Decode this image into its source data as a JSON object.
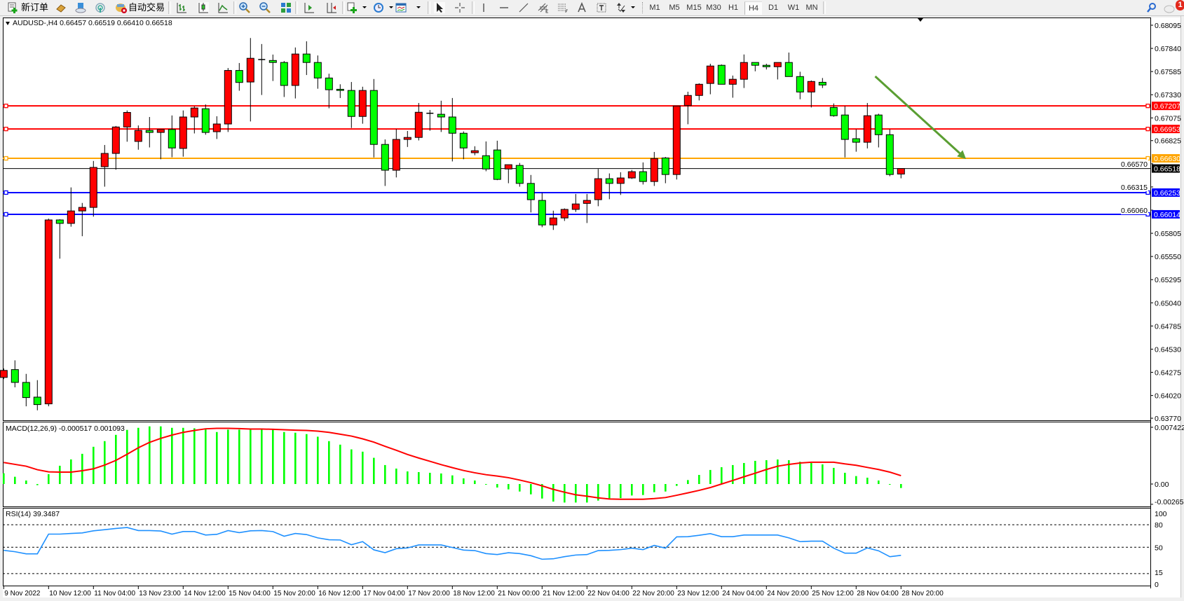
{
  "toolbar": {
    "new_order_label": "新订单",
    "auto_trading_label": "自动交易",
    "icons": [
      "new-order-icon",
      "gold-bars-icon",
      "data-window-icon",
      "signal-icon",
      "auto-trading-icon",
      "bar-chart-icon",
      "candlestick-icon",
      "line-chart-icon",
      "zoom-in-icon",
      "zoom-out-icon",
      "tile-windows-icon",
      "auto-scroll-icon",
      "chart-shift-icon",
      "indicators-icon",
      "periods-clock-icon",
      "templates-icon",
      "cursor-icon",
      "crosshair-icon",
      "vertical-line-icon",
      "horizontal-line-icon",
      "trend-line-icon",
      "equidistant-channel-icon",
      "fibonacci-icon",
      "text-icon",
      "text-label-icon",
      "arrows-icon",
      "search-icon",
      "notification-icon"
    ],
    "timeframes": [
      "M1",
      "M5",
      "M15",
      "M30",
      "H1",
      "H4",
      "D1",
      "W1",
      "MN"
    ],
    "active_timeframe": "H4",
    "notification_count": "1"
  },
  "main_panel": {
    "header": "AUDUSD-,H4  0.66457 0.66519 0.66410 0.66518"
  },
  "macd_panel": {
    "header": "MACD(12,26,9) -0.000517 0.001093"
  },
  "rsi_panel": {
    "header": "RSI(14) 39.3487"
  },
  "colors": {
    "bull_candle": "#ff0000",
    "bear_candle": "#00ff00",
    "macd_histogram": "#00ff00",
    "macd_signal": "#ff0000",
    "rsi_line": "#1e90ff",
    "arrow": "#5a9e32"
  },
  "chart_data": [
    {
      "type": "candlestick",
      "symbol": "AUDUSD-",
      "timeframe": "H4",
      "ylim": [
        0.63755,
        0.68172
      ],
      "y_tick_labels": [
        "0.68095",
        "0.67840",
        "0.67585",
        "0.67330",
        "0.67075",
        "0.66825",
        "0.66570",
        "0.66315",
        "0.66060",
        "0.65805",
        "0.65550",
        "0.65295",
        "0.65040",
        "0.64785",
        "0.64530",
        "0.64275",
        "0.64020",
        "0.63770"
      ],
      "x_tick_labels": [
        {
          "bar": 0,
          "label": "9 Nov 2022"
        },
        {
          "bar": 4,
          "label": "10 Nov 12:00"
        },
        {
          "bar": 8,
          "label": "11 Nov 04:00"
        },
        {
          "bar": 12,
          "label": "13 Nov 23:00"
        },
        {
          "bar": 16,
          "label": "14 Nov 12:00"
        },
        {
          "bar": 20,
          "label": "15 Nov 04:00"
        },
        {
          "bar": 24,
          "label": "15 Nov 20:00"
        },
        {
          "bar": 28,
          "label": "16 Nov 12:00"
        },
        {
          "bar": 32,
          "label": "17 Nov 04:00"
        },
        {
          "bar": 36,
          "label": "17 Nov 20:00"
        },
        {
          "bar": 40,
          "label": "18 Nov 12:00"
        },
        {
          "bar": 44,
          "label": "21 Nov 00:00"
        },
        {
          "bar": 48,
          "label": "21 Nov 12:00"
        },
        {
          "bar": 52,
          "label": "22 Nov 04:00"
        },
        {
          "bar": 56,
          "label": "22 Nov 20:00"
        },
        {
          "bar": 60,
          "label": "23 Nov 12:00"
        },
        {
          "bar": 64,
          "label": "24 Nov 04:00"
        },
        {
          "bar": 68,
          "label": "24 Nov 20:00"
        },
        {
          "bar": 72,
          "label": "25 Nov 12:00"
        },
        {
          "bar": 76,
          "label": "28 Nov 04:00"
        },
        {
          "bar": 80,
          "label": "28 Nov 20:00"
        }
      ],
      "ohlc": [
        [
          0.64219,
          0.64318,
          0.642,
          0.64296
        ],
        [
          0.64305,
          0.64407,
          0.6411,
          0.64164
        ],
        [
          0.64164,
          0.64258,
          0.63901,
          0.63997
        ],
        [
          0.64002,
          0.64189,
          0.63857,
          0.6392
        ],
        [
          0.63928,
          0.65966,
          0.63901,
          0.65952
        ],
        [
          0.65952,
          0.6596,
          0.65526,
          0.65914
        ],
        [
          0.65914,
          0.6631,
          0.65878,
          0.66051
        ],
        [
          0.66051,
          0.66139,
          0.65773,
          0.6609
        ],
        [
          0.6609,
          0.66601,
          0.65988,
          0.6653
        ],
        [
          0.66538,
          0.66777,
          0.66318,
          0.66684
        ],
        [
          0.66684,
          0.66986,
          0.66505,
          0.66975
        ],
        [
          0.66975,
          0.67157,
          0.66813,
          0.67135
        ],
        [
          0.66816,
          0.66992,
          0.66725,
          0.66937
        ],
        [
          0.66937,
          0.67085,
          0.6675,
          0.66915
        ],
        [
          0.66915,
          0.66948,
          0.6662,
          0.66948
        ],
        [
          0.66948,
          0.67102,
          0.66642,
          0.66744
        ],
        [
          0.66739,
          0.67157,
          0.66648,
          0.67085
        ],
        [
          0.67085,
          0.67203,
          0.66904,
          0.67184
        ],
        [
          0.67176,
          0.67223,
          0.6689,
          0.66915
        ],
        [
          0.66923,
          0.67093,
          0.66843,
          0.67008
        ],
        [
          0.67008,
          0.67624,
          0.6692,
          0.67597
        ],
        [
          0.67597,
          0.67679,
          0.67374,
          0.67465
        ],
        [
          0.6747,
          0.67954,
          0.67036,
          0.67731
        ],
        [
          0.67717,
          0.67888,
          0.67327,
          0.67717
        ],
        [
          0.67707,
          0.67772,
          0.67481,
          0.67685
        ],
        [
          0.67685,
          0.67701,
          0.67305,
          0.67432
        ],
        [
          0.67432,
          0.6785,
          0.67289,
          0.67778
        ],
        [
          0.67778,
          0.67918,
          0.67547,
          0.67685
        ],
        [
          0.67685,
          0.67762,
          0.67396,
          0.67514
        ],
        [
          0.67514,
          0.67561,
          0.67181,
          0.67385
        ],
        [
          0.6739,
          0.67445,
          0.67294,
          0.67377
        ],
        [
          0.67377,
          0.6747,
          0.66964,
          0.67091
        ],
        [
          0.67091,
          0.67418,
          0.67011,
          0.67377
        ],
        [
          0.67377,
          0.67503,
          0.6664,
          0.66783
        ],
        [
          0.66783,
          0.66838,
          0.66326,
          0.66499
        ],
        [
          0.66499,
          0.66953,
          0.6642,
          0.66838
        ],
        [
          0.66838,
          0.66931,
          0.66755,
          0.6686
        ],
        [
          0.6686,
          0.67239,
          0.66827,
          0.67137
        ],
        [
          0.67126,
          0.67162,
          0.66934,
          0.67126
        ],
        [
          0.67115,
          0.67264,
          0.6692,
          0.67085
        ],
        [
          0.67085,
          0.67294,
          0.66596,
          0.66906
        ],
        [
          0.66906,
          0.66926,
          0.6662,
          0.66744
        ],
        [
          0.66692,
          0.66763,
          0.66664,
          0.66714
        ],
        [
          0.66659,
          0.66816,
          0.66488,
          0.66513
        ],
        [
          0.66722,
          0.66824,
          0.6639,
          0.66398
        ],
        [
          0.66513,
          0.6656,
          0.66356,
          0.6656
        ],
        [
          0.66552,
          0.66579,
          0.66318,
          0.66354
        ],
        [
          0.66354,
          0.66447,
          0.66034,
          0.66175
        ],
        [
          0.66167,
          0.66249,
          0.65872,
          0.65897
        ],
        [
          0.65897,
          0.66054,
          0.65842,
          0.65974
        ],
        [
          0.65974,
          0.66079,
          0.65941,
          0.66068
        ],
        [
          0.66068,
          0.66238,
          0.6604,
          0.66128
        ],
        [
          0.66134,
          0.66238,
          0.65918,
          0.66167
        ],
        [
          0.66175,
          0.66513,
          0.66103,
          0.66406
        ],
        [
          0.66406,
          0.66464,
          0.6618,
          0.66354
        ],
        [
          0.66354,
          0.66477,
          0.66227,
          0.66414
        ],
        [
          0.66414,
          0.66502,
          0.66403,
          0.66483
        ],
        [
          0.66483,
          0.66585,
          0.66342,
          0.66375
        ],
        [
          0.66375,
          0.667,
          0.66326,
          0.66628
        ],
        [
          0.66634,
          0.66645,
          0.66356,
          0.66452
        ],
        [
          0.66452,
          0.67206,
          0.66397,
          0.67206
        ],
        [
          0.67211,
          0.67363,
          0.67005,
          0.67322
        ],
        [
          0.67322,
          0.67456,
          0.67267,
          0.67445
        ],
        [
          0.67454,
          0.67671,
          0.67335,
          0.67646
        ],
        [
          0.67654,
          0.67663,
          0.67445,
          0.67445
        ],
        [
          0.67445,
          0.67541,
          0.67297,
          0.675
        ],
        [
          0.675,
          0.67773,
          0.67404,
          0.67685
        ],
        [
          0.67685,
          0.67685,
          0.67588,
          0.67654
        ],
        [
          0.67654,
          0.67671,
          0.67608,
          0.67638
        ],
        [
          0.67638,
          0.67685,
          0.67498,
          0.67685
        ],
        [
          0.67685,
          0.67794,
          0.6753,
          0.6753
        ],
        [
          0.6753,
          0.67583,
          0.6728,
          0.6736
        ],
        [
          0.6736,
          0.67487,
          0.6719,
          0.67476
        ],
        [
          0.67467,
          0.67514,
          0.67404,
          0.67437
        ],
        [
          0.6719,
          0.67234,
          0.67088,
          0.67099
        ],
        [
          0.67107,
          0.67206,
          0.6664,
          0.66838
        ],
        [
          0.66846,
          0.6695,
          0.66703,
          0.66807
        ],
        [
          0.66807,
          0.67239,
          0.66739,
          0.67099
        ],
        [
          0.67107,
          0.67121,
          0.6675,
          0.6689
        ],
        [
          0.6689,
          0.6695,
          0.66433,
          0.66452
        ],
        [
          0.66457,
          0.66519,
          0.6641,
          0.66518
        ]
      ],
      "horizontal_lines": [
        {
          "price": 0.67207,
          "label": "0.67207",
          "color": "#ff0000"
        },
        {
          "price": 0.66953,
          "label": "0.66953",
          "color": "#ff0000"
        },
        {
          "price": 0.6663,
          "label": "0.66630",
          "color": "#ffa500"
        },
        {
          "price": 0.66253,
          "label": "0.66253",
          "color": "#0000ff"
        },
        {
          "price": 0.66014,
          "label": "0.66014",
          "color": "#0000ff"
        }
      ],
      "bid_line": {
        "price": 0.66518,
        "label": "0.66518",
        "color": "#000000"
      },
      "arrow_annotation": {
        "from": {
          "bar": 77.7,
          "price": 0.67532
        },
        "to": {
          "bar": 85.8,
          "price": 0.66623
        },
        "color": "#5a9e32"
      }
    },
    {
      "type": "bar+line",
      "name": "MACD(12,26,9)",
      "ylim": [
        -0.00284,
        0.00797
      ],
      "y_tick_labels": [
        {
          "value": 0.007422,
          "label": "0.007422"
        },
        {
          "value": 0,
          "label": "0.00"
        },
        {
          "value": -0.002651,
          "label": "-0.002651"
        }
      ],
      "histogram": [
        0.00141,
        0.00095,
        0.00046,
        -0.00015,
        0.00129,
        0.00239,
        0.00322,
        0.00395,
        0.00487,
        0.00561,
        0.00643,
        0.00708,
        0.00735,
        0.00754,
        0.00754,
        0.00735,
        0.00735,
        0.00729,
        0.00714,
        0.0068,
        0.00711,
        0.00711,
        0.00711,
        0.00711,
        0.00711,
        0.0068,
        0.00671,
        0.00653,
        0.00619,
        0.00561,
        0.00515,
        0.00453,
        0.00423,
        0.00343,
        0.00248,
        0.00202,
        0.00165,
        0.00156,
        0.00147,
        0.00138,
        0.00113,
        0.00074,
        0.00046,
        -6e-05,
        -0.00046,
        -0.0007,
        -0.00098,
        -0.00135,
        -0.0019,
        -0.0023,
        -0.00242,
        -0.00242,
        -0.00242,
        -0.00217,
        -0.00187,
        -0.00184,
        -0.0015,
        -0.00144,
        -0.00107,
        -0.00098,
        -0.00024,
        0.00052,
        0.00119,
        0.00184,
        0.0022,
        0.00248,
        0.00275,
        0.00303,
        0.00312,
        0.00321,
        0.00312,
        0.00291,
        0.00275,
        0.00257,
        0.00211,
        0.00147,
        0.00104,
        0.00083,
        0.00046,
        -9e-05,
        -0.00052
      ],
      "signal": [
        0.00282,
        0.00257,
        0.00233,
        0.00187,
        0.00159,
        0.00156,
        0.00156,
        0.00174,
        0.00199,
        0.00248,
        0.00309,
        0.00389,
        0.00474,
        0.00545,
        0.00597,
        0.0064,
        0.00676,
        0.00701,
        0.00722,
        0.00728,
        0.00728,
        0.00725,
        0.00719,
        0.00719,
        0.00716,
        0.0071,
        0.00704,
        0.00701,
        0.00692,
        0.00676,
        0.00652,
        0.00627,
        0.00591,
        0.00548,
        0.00493,
        0.00441,
        0.00386,
        0.0034,
        0.00297,
        0.00254,
        0.00214,
        0.00177,
        0.00147,
        0.00122,
        0.00104,
        0.00083,
        0.00052,
        0.00018,
        -0.00024,
        -0.0007,
        -0.00107,
        -0.00141,
        -0.00159,
        -0.00181,
        -0.00196,
        -0.00199,
        -0.00199,
        -0.00199,
        -0.0019,
        -0.00177,
        -0.00147,
        -0.00116,
        -0.00083,
        -0.00046,
        0.0,
        0.00046,
        0.00095,
        0.00141,
        0.0019,
        0.00233,
        0.00257,
        0.00275,
        0.00285,
        0.00285,
        0.00285,
        0.00263,
        0.00245,
        0.00217,
        0.0019,
        0.00156,
        0.00109
      ]
    },
    {
      "type": "line",
      "name": "RSI(14)",
      "ylim": [
        0,
        100
      ],
      "levels": [
        80,
        50,
        15
      ],
      "y_tick_labels": [
        {
          "value": 100,
          "label": "100"
        },
        {
          "value": 80,
          "label": "80"
        },
        {
          "value": 50,
          "label": "50"
        },
        {
          "value": 15,
          "label": "15"
        },
        {
          "value": 0,
          "label": "0"
        }
      ],
      "values": [
        45.9,
        44.1,
        41.3,
        41.3,
        67.5,
        67.5,
        68.4,
        69.1,
        71.9,
        73.4,
        75.0,
        76.3,
        72.2,
        72.2,
        71.6,
        67.5,
        70.9,
        70.9,
        66.3,
        67.2,
        72.2,
        69.4,
        71.9,
        72.2,
        70.9,
        64.7,
        68.4,
        66.9,
        62.5,
        60.0,
        59.7,
        53.4,
        57.5,
        46.6,
        42.8,
        48.1,
        49.1,
        53.1,
        53.1,
        53.1,
        49.7,
        46.3,
        45.6,
        41.6,
        40.3,
        42.8,
        41.6,
        38.8,
        34.1,
        34.7,
        37.5,
        39.7,
        40.3,
        45.6,
        45.9,
        46.9,
        48.8,
        46.9,
        52.5,
        48.8,
        63.8,
        64.1,
        65.9,
        68.1,
        64.1,
        64.1,
        66.3,
        66.3,
        66.3,
        66.3,
        62.5,
        57.5,
        58.1,
        58.1,
        48.8,
        42.2,
        42.2,
        49.1,
        45.3,
        37.5,
        39.3
      ]
    }
  ]
}
